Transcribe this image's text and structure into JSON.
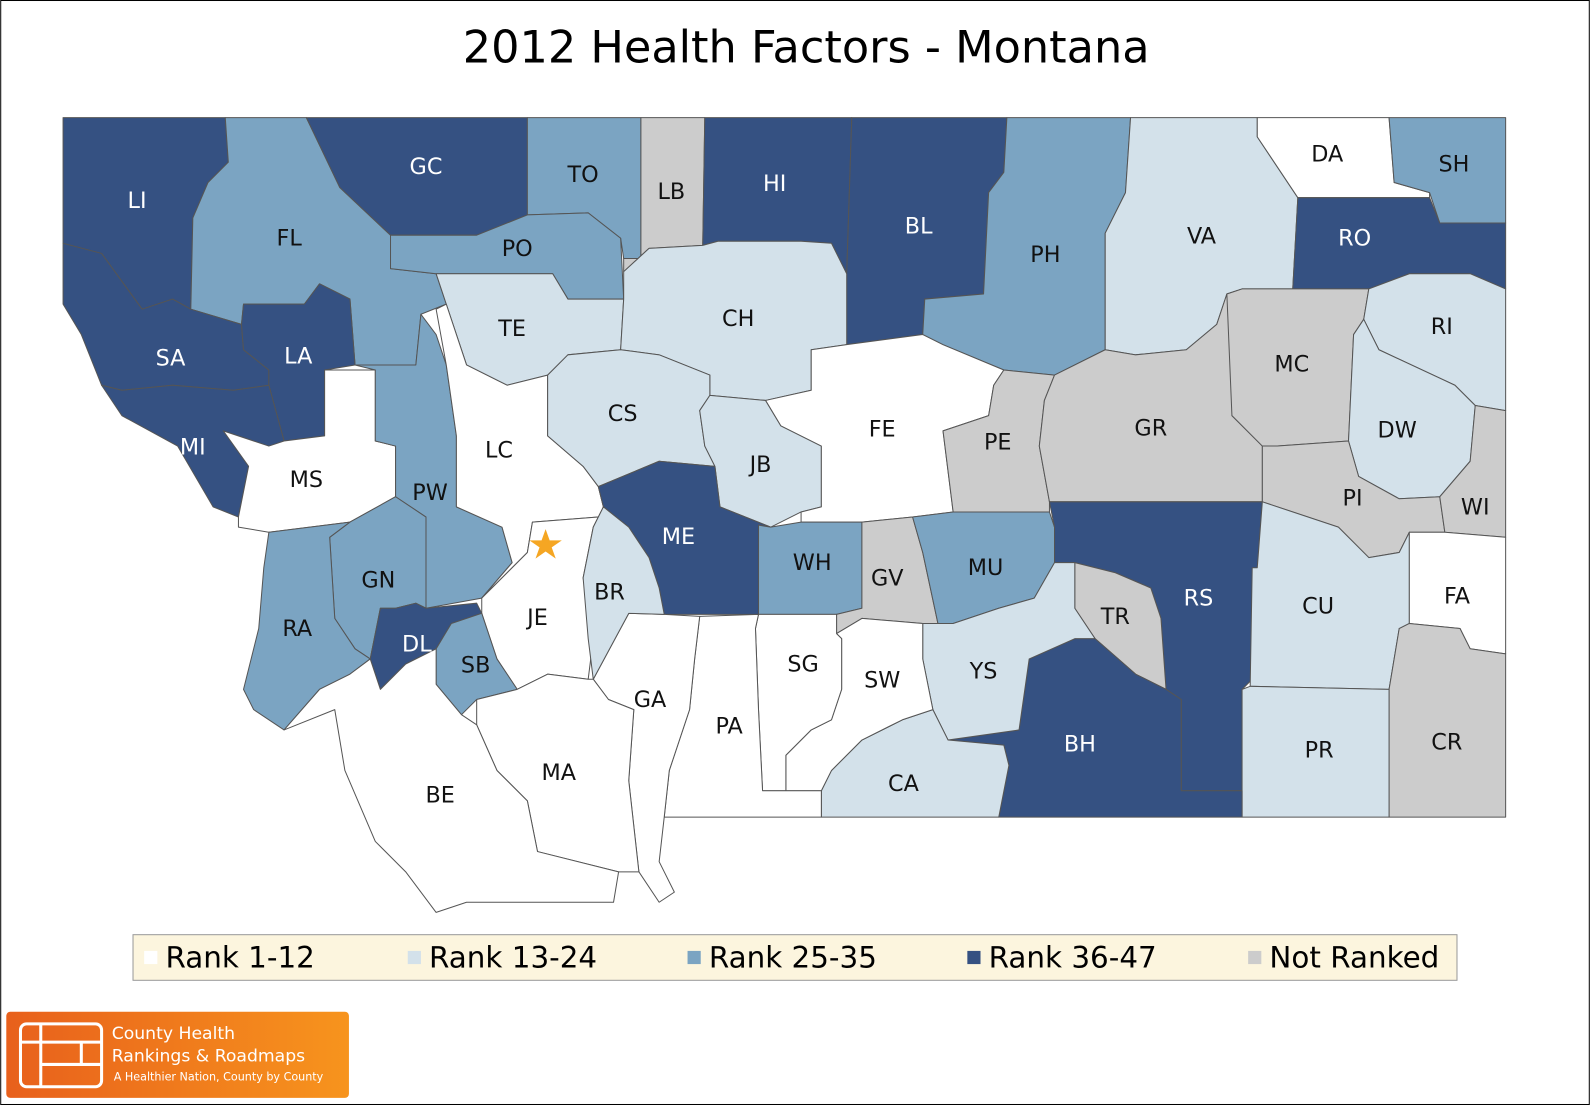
{
  "title": "2012 Health Factors - Montana",
  "legend": [
    {
      "label": "Rank 1-12",
      "color": "#ffffff"
    },
    {
      "label": "Rank 13-24",
      "color": "#d3e1ea"
    },
    {
      "label": "Rank 25-35",
      "color": "#7ba4c2"
    },
    {
      "label": "Rank 36-47",
      "color": "#355182"
    },
    {
      "label": "Not Ranked",
      "color": "#cccccc"
    }
  ],
  "counties": [
    {
      "label": "LI",
      "color": "#355182"
    },
    {
      "label": "FL",
      "color": "#7ba4c2"
    },
    {
      "label": "GC",
      "color": "#355182"
    },
    {
      "label": "TO",
      "color": "#7ba4c2"
    },
    {
      "label": "LB",
      "color": "#cccccc"
    },
    {
      "label": "HI",
      "color": "#355182"
    },
    {
      "label": "BL",
      "color": "#355182"
    },
    {
      "label": "PH",
      "color": "#7ba4c2"
    },
    {
      "label": "VA",
      "color": "#d3e1ea"
    },
    {
      "label": "DA",
      "color": "#ffffff"
    },
    {
      "label": "SH",
      "color": "#7ba4c2"
    },
    {
      "label": "RO",
      "color": "#355182"
    },
    {
      "label": "PO",
      "color": "#7ba4c2"
    },
    {
      "label": "TE",
      "color": "#d3e1ea"
    },
    {
      "label": "CH",
      "color": "#d3e1ea"
    },
    {
      "label": "SA",
      "color": "#355182"
    },
    {
      "label": "LA",
      "color": "#355182"
    },
    {
      "label": "MI",
      "color": "#355182"
    },
    {
      "label": "MS",
      "color": "#ffffff"
    },
    {
      "label": "PW",
      "color": "#7ba4c2"
    },
    {
      "label": "LC",
      "color": "#ffffff"
    },
    {
      "label": "CS",
      "color": "#d3e1ea"
    },
    {
      "label": "JB",
      "color": "#d3e1ea"
    },
    {
      "label": "FE",
      "color": "#ffffff"
    },
    {
      "label": "PE",
      "color": "#cccccc"
    },
    {
      "label": "GR",
      "color": "#cccccc"
    },
    {
      "label": "MC",
      "color": "#cccccc"
    },
    {
      "label": "RI",
      "color": "#d3e1ea"
    },
    {
      "label": "DW",
      "color": "#d3e1ea"
    },
    {
      "label": "PI",
      "color": "#cccccc"
    },
    {
      "label": "WI",
      "color": "#cccccc"
    },
    {
      "label": "ME",
      "color": "#355182"
    },
    {
      "label": "WH",
      "color": "#7ba4c2"
    },
    {
      "label": "GV",
      "color": "#cccccc"
    },
    {
      "label": "MU",
      "color": "#7ba4c2"
    },
    {
      "label": "RS",
      "color": "#355182"
    },
    {
      "label": "TR",
      "color": "#cccccc"
    },
    {
      "label": "CU",
      "color": "#d3e1ea"
    },
    {
      "label": "FA",
      "color": "#ffffff"
    },
    {
      "label": "CR",
      "color": "#cccccc"
    },
    {
      "label": "PR",
      "color": "#d3e1ea"
    },
    {
      "label": "BH",
      "color": "#355182"
    },
    {
      "label": "YS",
      "color": "#d3e1ea"
    },
    {
      "label": "CA",
      "color": "#d3e1ea"
    },
    {
      "label": "SW",
      "color": "#ffffff"
    },
    {
      "label": "SG",
      "color": "#ffffff"
    },
    {
      "label": "PA",
      "color": "#ffffff"
    },
    {
      "label": "GA",
      "color": "#ffffff"
    },
    {
      "label": "JE",
      "color": "#ffffff"
    },
    {
      "label": "BR",
      "color": "#d3e1ea"
    },
    {
      "label": "GN",
      "color": "#7ba4c2"
    },
    {
      "label": "RA",
      "color": "#7ba4c2"
    },
    {
      "label": "DL",
      "color": "#355182"
    },
    {
      "label": "SB",
      "color": "#7ba4c2"
    },
    {
      "label": "MA",
      "color": "#ffffff"
    },
    {
      "label": "BE",
      "color": "#ffffff"
    }
  ],
  "logo": {
    "line1": "County Health",
    "line2": "Rankings & Roadmaps",
    "tagline": "A Healthier Nation, County by County"
  }
}
